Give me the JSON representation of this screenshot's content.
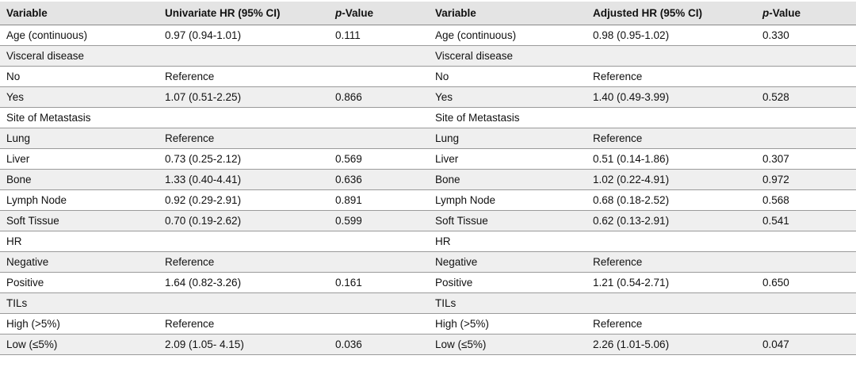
{
  "table": {
    "header": [
      "Variable",
      "Univariate HR (95% CI)",
      {
        "italic": "p",
        "text": "-Value"
      },
      "Variable",
      "Adjusted HR (95% CI)",
      {
        "italic": "p",
        "text": "-Value"
      }
    ],
    "rows": [
      [
        "Age (continuous)",
        "0.97 (0.94-1.01)",
        "0.111",
        "Age (continuous)",
        "0.98 (0.95-1.02)",
        "0.330"
      ],
      [
        "Visceral disease",
        null,
        null,
        "Visceral disease",
        null,
        null
      ],
      [
        "No",
        "Reference",
        null,
        "No",
        "Reference",
        null
      ],
      [
        "Yes",
        "1.07 (0.51-2.25)",
        "0.866",
        "Yes",
        "1.40 (0.49-3.99)",
        "0.528"
      ],
      [
        "Site of Metastasis",
        null,
        null,
        "Site of Metastasis",
        null,
        null
      ],
      [
        "Lung",
        "Reference",
        null,
        "Lung",
        "Reference",
        null
      ],
      [
        "Liver",
        "0.73 (0.25-2.12)",
        "0.569",
        "Liver",
        "0.51 (0.14-1.86)",
        "0.307"
      ],
      [
        "Bone",
        "1.33 (0.40-4.41)",
        "0.636",
        "Bone",
        "1.02 (0.22-4.91)",
        "0.972"
      ],
      [
        "Lymph Node",
        "0.92 (0.29-2.91)",
        "0.891",
        "Lymph Node",
        "0.68 (0.18-2.52)",
        "0.568"
      ],
      [
        "Soft Tissue",
        "0.70 (0.19-2.62)",
        "0.599",
        "Soft Tissue",
        "0.62 (0.13-2.91)",
        "0.541"
      ],
      [
        "HR",
        null,
        null,
        "HR",
        null,
        null
      ],
      [
        "Negative",
        "Reference",
        null,
        "Negative",
        "Reference",
        null
      ],
      [
        "Positive",
        "1.64 (0.82-3.26)",
        "0.161",
        "Positive",
        "1.21 (0.54-2.71)",
        "0.650"
      ],
      [
        "TILs",
        null,
        null,
        "TILs",
        null,
        null
      ],
      [
        "High (>5%)",
        "Reference",
        null,
        "High (>5%)",
        "Reference",
        null
      ],
      [
        "Low (≤5%)",
        "2.09 (1.05- 4.15)",
        "0.036",
        "Low (≤5%)",
        "2.26 (1.01-5.06)",
        "0.047"
      ]
    ]
  }
}
